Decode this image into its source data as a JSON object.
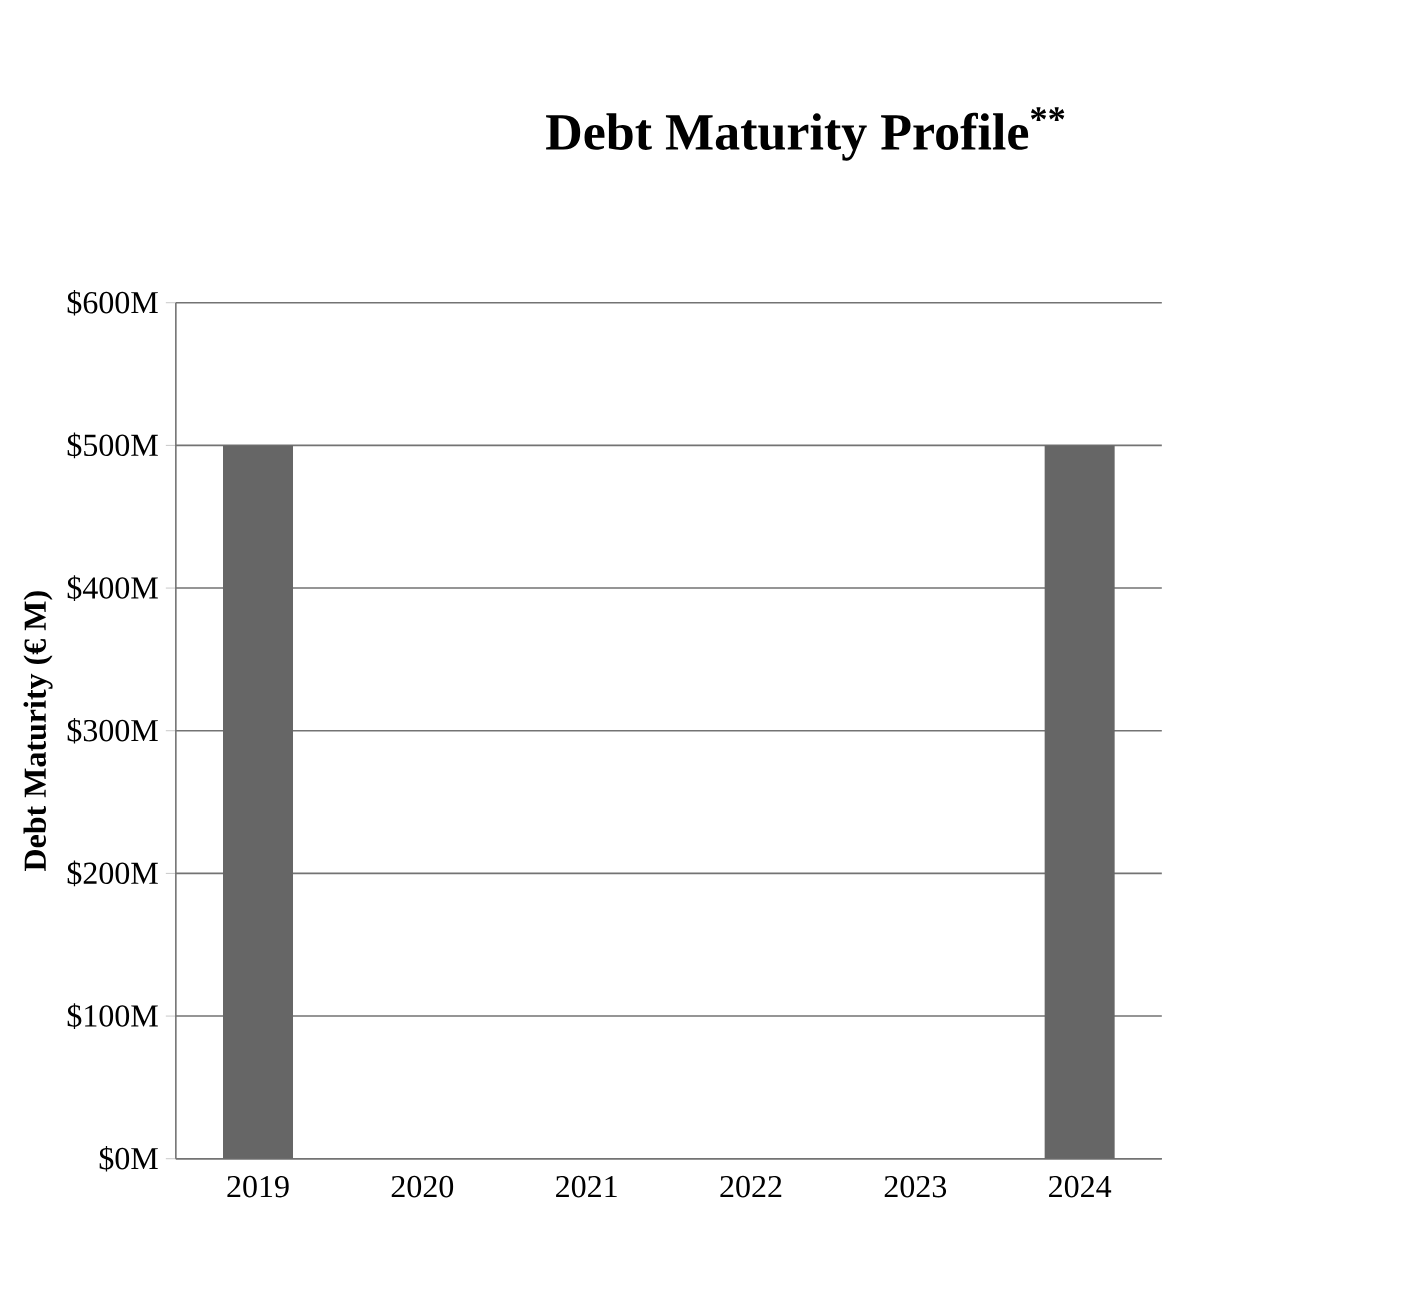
{
  "chart_data": {
    "type": "bar",
    "title": "Debt Maturity Profile$^{**}$",
    "ylabel": "Debt Maturity (€ M)",
    "categories": [
      "2019",
      "2020",
      "2021",
      "2022",
      "2023",
      "2024"
    ],
    "values": [
      500,
      0,
      0,
      0,
      0,
      500
    ],
    "color": "#666666",
    "ylim": [
      0,
      600
    ],
    "yticks": [
      {
        "value": 0,
        "label": "$0M"
      },
      {
        "value": 100,
        "label": "$100M"
      },
      {
        "value": 200,
        "label": "$200M"
      },
      {
        "value": 300,
        "label": "$300M"
      },
      {
        "value": 400,
        "label": "$400M"
      },
      {
        "value": 500,
        "label": "$500M"
      },
      {
        "value": 600,
        "label": "$600M"
      }
    ],
    "grid": "y"
  }
}
